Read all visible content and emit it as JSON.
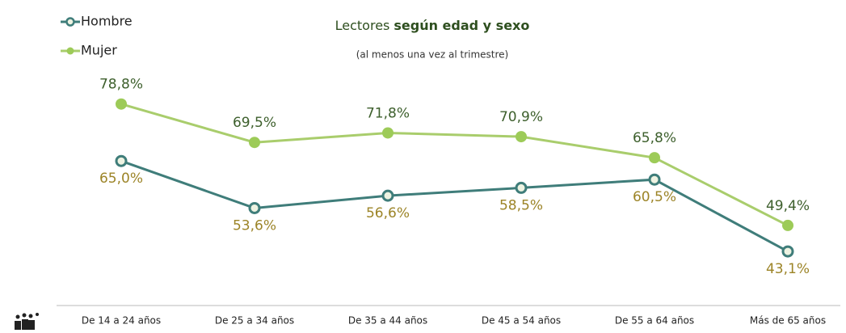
{
  "chart_data": {
    "type": "line",
    "title": [
      "Lectores",
      "según edad y sexo"
    ],
    "subtitle": "(al menos una vez al trimestre)",
    "categories": [
      "De 14 a 24 años",
      "De 25 a 34 años",
      "De 35 a 44 años",
      "De 45 a 54 años",
      "De 55 a 64 años",
      "Más de 65 años"
    ],
    "series": [
      {
        "name": "Hombre",
        "color": "#3f7d7a",
        "marker_fill": "#eef3e2",
        "label_color": "#9c8427",
        "values": [
          65.0,
          53.6,
          56.6,
          58.5,
          60.5,
          43.1
        ],
        "value_labels": [
          "65,0%",
          "53,6%",
          "56,6%",
          "58,5%",
          "60,5%",
          "43,1%"
        ]
      },
      {
        "name": "Mujer",
        "color": "#a9cd6c",
        "marker_fill": "#9dcb58",
        "label_color": "#3d5f2c",
        "values": [
          78.8,
          69.5,
          71.8,
          70.9,
          65.8,
          49.4
        ],
        "value_labels": [
          "78,8%",
          "69,5%",
          "71,8%",
          "70,9%",
          "65,8%",
          "49,4%"
        ]
      }
    ],
    "ylim": [
      30,
      80
    ],
    "legend": "top-left"
  }
}
